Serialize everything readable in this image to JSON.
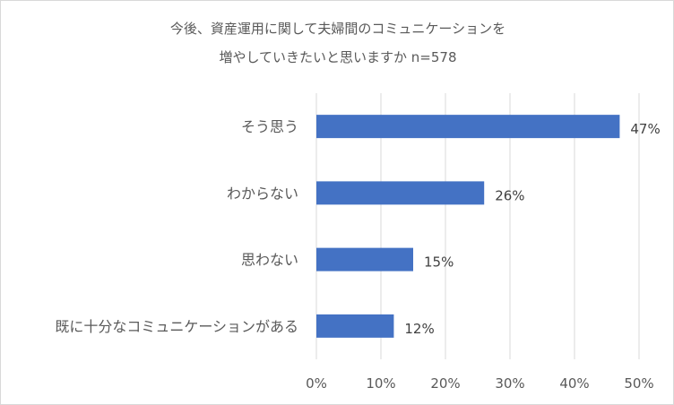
{
  "chart_data": {
    "type": "bar",
    "orientation": "horizontal",
    "title": [
      "今後、資産運用に関して夫婦間のコミュニケーションを",
      "増やしていきたいと思いますか n=578"
    ],
    "categories": [
      "そう思う",
      "わからない",
      "思わない",
      "既に十分なコミュニケーションがある"
    ],
    "values": [
      47,
      26,
      15,
      12
    ],
    "data_labels": [
      "47%",
      "26%",
      "15%",
      "12%"
    ],
    "x_ticks": [
      0,
      10,
      20,
      30,
      40,
      50
    ],
    "x_tick_labels": [
      "0%",
      "10%",
      "20%",
      "30%",
      "40%",
      "50%"
    ],
    "xlim": [
      0,
      50
    ],
    "grid": true,
    "legend": "none",
    "bar_color": "#4472c4",
    "grid_color": "#d9d9d9"
  }
}
